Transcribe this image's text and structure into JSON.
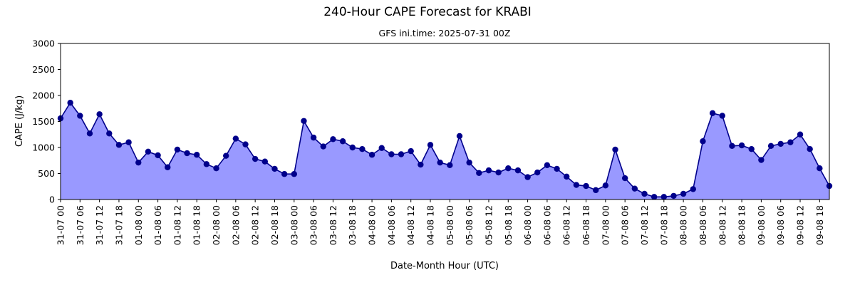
{
  "chart_data": {
    "type": "area",
    "title": "240-Hour CAPE Forecast for KRABI",
    "subtitle": "GFS ini.time: 2025-07-31 00Z",
    "xlabel": "Date-Month Hour (UTC)",
    "ylabel": "CAPE (J/kg)",
    "ylim": [
      0,
      3000
    ],
    "yticks": [
      0,
      500,
      1000,
      1500,
      2000,
      2500,
      3000
    ],
    "xticks": [
      "31-07 00",
      "31-07 06",
      "31-07 12",
      "31-07 18",
      "01-08 00",
      "01-08 06",
      "01-08 12",
      "01-08 18",
      "02-08 00",
      "02-08 06",
      "02-08 12",
      "02-08 18",
      "03-08 00",
      "03-08 06",
      "03-08 12",
      "03-08 18",
      "04-08 00",
      "04-08 06",
      "04-08 12",
      "04-08 18",
      "05-08 00",
      "05-08 06",
      "05-08 12",
      "05-08 18",
      "06-08 00",
      "06-08 06",
      "06-08 12",
      "06-08 18",
      "07-08 00",
      "07-08 06",
      "07-08 12",
      "07-08 18",
      "08-08 00",
      "08-08 06",
      "08-08 12",
      "08-08 18",
      "09-08 00",
      "09-08 06",
      "09-08 12",
      "09-08 18"
    ],
    "x_start": "2025-07-31 00Z",
    "x_step_hours": 3,
    "values": [
      1560,
      1860,
      1610,
      1270,
      1640,
      1270,
      1050,
      1100,
      710,
      920,
      850,
      620,
      960,
      890,
      860,
      680,
      600,
      840,
      1170,
      1060,
      780,
      730,
      590,
      490,
      490,
      1510,
      1190,
      1020,
      1160,
      1120,
      1000,
      970,
      860,
      990,
      870,
      870,
      930,
      670,
      1050,
      710,
      660,
      1220,
      710,
      510,
      560,
      520,
      600,
      560,
      430,
      520,
      660,
      590,
      440,
      280,
      260,
      180,
      270,
      960,
      410,
      210,
      110,
      50,
      50,
      70,
      110,
      200,
      1120,
      1660,
      1610,
      1030,
      1040,
      970,
      760,
      1030,
      1070,
      1100,
      1250,
      970,
      600,
      260
    ],
    "grid": false,
    "colors": {
      "line": "#00008b",
      "fill": "#9999ff",
      "marker": "#00008b"
    }
  }
}
